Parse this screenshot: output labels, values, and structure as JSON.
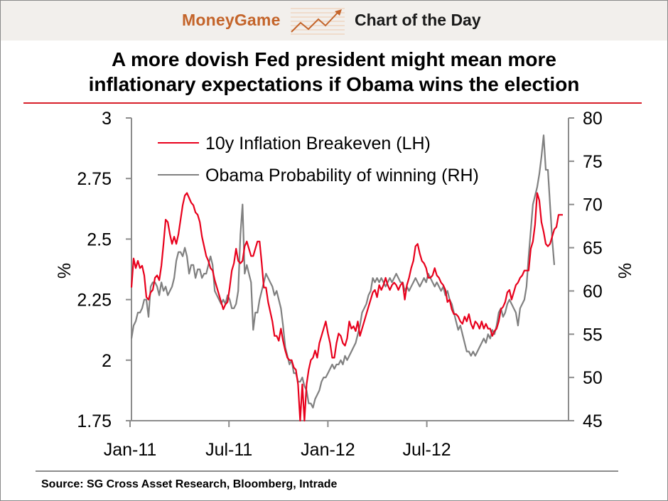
{
  "header": {
    "brand": "MoneyGame",
    "brand_icon": "rising-chart-icon",
    "section": "Chart of the Day",
    "brand_color": "#c4642a"
  },
  "title_lines": [
    "A more dovish Fed president might mean more",
    "inflationary expectations if Obama wins the election"
  ],
  "source": "Source: SG Cross Asset Research, Bloomberg, Intrade",
  "chart_data": {
    "type": "line",
    "title": "A more dovish Fed president might mean more inflationary expectations if Obama wins the election",
    "xlabel": "",
    "x_ticks": [
      "Jan-11",
      "Jul-11",
      "Jan-12",
      "Jul-12"
    ],
    "x_range": [
      "2011-01",
      "2012-10"
    ],
    "y_left": {
      "label": "%",
      "ticks": [
        "3",
        "2.75",
        "2.5",
        "2.25",
        "2",
        "1.75"
      ],
      "ylim": [
        1.75,
        3
      ]
    },
    "y_right": {
      "label": "%",
      "ticks": [
        "80",
        "75",
        "70",
        "65",
        "60",
        "55",
        "50",
        "45"
      ],
      "ylim": [
        45,
        80
      ]
    },
    "grid": false,
    "legend_position": "top-left",
    "months_per_point": 0.25,
    "series": [
      {
        "name": "10y Inflation Breakeven (LH)",
        "axis": "left",
        "color": "#e8001c",
        "values": [
          2.3,
          2.42,
          2.38,
          2.41,
          2.38,
          2.39,
          2.35,
          2.26,
          2.25,
          2.28,
          2.29,
          2.34,
          2.35,
          2.33,
          2.39,
          2.48,
          2.58,
          2.57,
          2.52,
          2.48,
          2.51,
          2.48,
          2.52,
          2.58,
          2.64,
          2.68,
          2.69,
          2.67,
          2.65,
          2.64,
          2.61,
          2.6,
          2.57,
          2.51,
          2.47,
          2.43,
          2.41,
          2.38,
          2.37,
          2.33,
          2.3,
          2.27,
          2.24,
          2.21,
          2.23,
          2.24,
          2.3,
          2.37,
          2.4,
          2.46,
          2.41,
          2.4,
          2.41,
          2.47,
          2.49,
          2.46,
          2.43,
          2.43,
          2.46,
          2.49,
          2.49,
          2.4,
          2.3,
          2.3,
          2.24,
          2.2,
          2.16,
          2.1,
          2.1,
          2.08,
          2.13,
          2.08,
          2.04,
          2.01,
          2.0,
          2.0,
          1.97,
          1.96,
          1.9,
          1.75,
          1.9,
          1.75,
          1.9,
          1.96,
          2.0,
          2.01,
          2.04,
          2.01,
          2.07,
          2.1,
          2.13,
          2.16,
          2.11,
          2.07,
          2.01,
          2.01,
          2.07,
          2.11,
          2.1,
          2.07,
          2.06,
          2.09,
          2.16,
          2.13,
          2.14,
          2.12,
          2.16,
          2.1,
          2.13,
          2.16,
          2.19,
          2.22,
          2.25,
          2.28,
          2.29,
          2.26,
          2.31,
          2.29,
          2.31,
          2.34,
          2.31,
          2.29,
          2.31,
          2.32,
          2.31,
          2.29,
          2.31,
          2.32,
          2.25,
          2.31,
          2.34,
          2.38,
          2.41,
          2.47,
          2.48,
          2.44,
          2.41,
          2.4,
          2.38,
          2.34,
          2.34,
          2.35,
          2.38,
          2.35,
          2.34,
          2.32,
          2.31,
          2.29,
          2.24,
          2.25,
          2.21,
          2.19,
          2.19,
          2.18,
          2.16,
          2.15,
          2.18,
          2.16,
          2.19,
          2.15,
          2.13,
          2.16,
          2.15,
          2.13,
          2.16,
          2.13,
          2.15,
          2.13,
          2.13,
          2.1,
          2.12,
          2.13,
          2.16,
          2.21,
          2.22,
          2.24,
          2.28,
          2.29,
          2.25,
          2.28,
          2.31,
          2.32,
          2.34,
          2.35,
          2.37,
          2.37,
          2.37,
          2.46,
          2.49,
          2.56,
          2.69,
          2.66,
          2.57,
          2.53,
          2.48,
          2.47,
          2.48,
          2.51,
          2.54,
          2.55,
          2.6,
          2.6,
          2.6
        ]
      },
      {
        "name": "Obama Probability of winning (RH)",
        "axis": "right",
        "color": "#808080",
        "values": [
          54.5,
          56.0,
          56.5,
          57.5,
          57.5,
          58.0,
          59.0,
          59.0,
          57.0,
          60.5,
          61.0,
          61.0,
          60.5,
          59.5,
          61.0,
          60.0,
          60.5,
          59.5,
          60.0,
          60.5,
          61.5,
          63.5,
          64.5,
          64.5,
          64.0,
          65.0,
          64.0,
          62.0,
          63.0,
          63.0,
          61.5,
          62.5,
          62.5,
          61.5,
          62.0,
          62.0,
          63.0,
          64.0,
          63.0,
          60.0,
          59.5,
          59.0,
          58.5,
          59.0,
          58.5,
          59.5,
          59.0,
          58.0,
          58.0,
          58.5,
          60.0,
          66.5,
          70.0,
          62.0,
          63.0,
          62.0,
          61.0,
          55.5,
          57.5,
          57.5,
          59.0,
          60.0,
          61.0,
          62.0,
          61.5,
          61.0,
          60.5,
          59.5,
          60.0,
          59.0,
          58.0,
          56.0,
          53.5,
          52.5,
          51.5,
          52.0,
          50.5,
          50.5,
          49.5,
          49.5,
          50.0,
          49.0,
          48.5,
          47.0,
          47.0,
          46.5,
          47.5,
          48.0,
          48.5,
          49.5,
          50.0,
          50.0,
          50.5,
          51.0,
          51.5,
          51.0,
          51.5,
          51.5,
          52.0,
          51.5,
          52.5,
          52.0,
          52.5,
          53.0,
          53.5,
          54.0,
          55.0,
          56.0,
          57.5,
          58.0,
          58.5,
          59.5,
          60.0,
          61.5,
          61.0,
          61.5,
          61.0,
          61.5,
          61.0,
          60.5,
          61.0,
          61.5,
          61.0,
          61.5,
          62.0,
          61.5,
          61.0,
          61.0,
          60.0,
          60.5,
          60.0,
          60.5,
          61.0,
          61.5,
          61.0,
          60.5,
          61.0,
          61.5,
          61.0,
          62.0,
          61.5,
          61.0,
          60.5,
          61.0,
          60.5,
          60.0,
          60.5,
          59.5,
          60.0,
          59.0,
          58.5,
          57.5,
          56.5,
          55.5,
          56.0,
          55.0,
          54.0,
          53.0,
          53.0,
          52.5,
          53.0,
          52.5,
          53.0,
          53.5,
          54.0,
          54.5,
          54.0,
          55.0,
          54.5,
          55.5,
          55.0,
          56.0,
          57.5,
          58.0,
          57.0,
          57.5,
          58.5,
          59.0,
          58.5,
          58.0,
          57.5,
          56.0,
          58.0,
          58.5,
          59.0,
          60.5,
          64.0,
          67.0,
          70.0,
          71.0,
          72.0,
          73.5,
          75.5,
          78.0,
          74.0,
          74.0,
          70.0,
          66.0,
          63.0
        ]
      }
    ]
  },
  "legend": {
    "items": [
      {
        "label": "10y Inflation Breakeven (LH)",
        "color": "#e8001c"
      },
      {
        "label": "Obama Probability of winning (RH)",
        "color": "#808080"
      }
    ]
  },
  "axes": {
    "left_title": "%",
    "right_title": "%"
  }
}
